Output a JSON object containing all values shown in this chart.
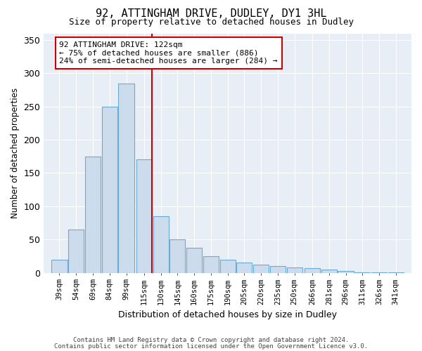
{
  "title1": "92, ATTINGHAM DRIVE, DUDLEY, DY1 3HL",
  "title2": "Size of property relative to detached houses in Dudley",
  "xlabel": "Distribution of detached houses by size in Dudley",
  "ylabel": "Number of detached properties",
  "footnote1": "Contains HM Land Registry data © Crown copyright and database right 2024.",
  "footnote2": "Contains public sector information licensed under the Open Government Licence v3.0.",
  "annotation_line1": "92 ATTINGHAM DRIVE: 122sqm",
  "annotation_line2": "← 75% of detached houses are smaller (886)",
  "annotation_line3": "24% of semi-detached houses are larger (284) →",
  "subject_size": 122,
  "bar_color": "#ccdcec",
  "bar_edge_color": "#6aaad4",
  "redline_color": "#cc0000",
  "background_color": "#e8eef6",
  "categories": [
    "39sqm",
    "54sqm",
    "69sqm",
    "84sqm",
    "99sqm",
    "115sqm",
    "130sqm",
    "145sqm",
    "160sqm",
    "175sqm",
    "190sqm",
    "205sqm",
    "220sqm",
    "235sqm",
    "250sqm",
    "266sqm",
    "281sqm",
    "296sqm",
    "311sqm",
    "326sqm",
    "341sqm"
  ],
  "values": [
    20,
    65,
    175,
    250,
    285,
    170,
    85,
    50,
    38,
    25,
    20,
    15,
    12,
    10,
    8,
    7,
    5,
    3,
    1,
    1,
    1
  ],
  "ylim": [
    0,
    360
  ],
  "yticks": [
    0,
    50,
    100,
    150,
    200,
    250,
    300,
    350
  ]
}
